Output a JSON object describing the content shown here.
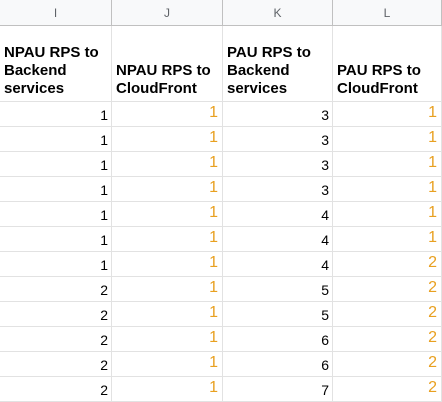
{
  "columns": [
    "I",
    "J",
    "K",
    "L"
  ],
  "headers": [
    "NPAU RPS to Backend services",
    "NPAU RPS to CloudFront",
    "PAU RPS to Backend services",
    "PAU RPS to CloudFront"
  ],
  "rows": [
    [
      "1",
      "1",
      "3",
      "1"
    ],
    [
      "1",
      "1",
      "3",
      "1"
    ],
    [
      "1",
      "1",
      "3",
      "1"
    ],
    [
      "1",
      "1",
      "3",
      "1"
    ],
    [
      "1",
      "1",
      "4",
      "1"
    ],
    [
      "1",
      "1",
      "4",
      "1"
    ],
    [
      "1",
      "1",
      "4",
      "2"
    ],
    [
      "2",
      "1",
      "5",
      "2"
    ],
    [
      "2",
      "1",
      "5",
      "2"
    ],
    [
      "2",
      "1",
      "6",
      "2"
    ],
    [
      "2",
      "1",
      "6",
      "2"
    ],
    [
      "2",
      "1",
      "7",
      "2"
    ]
  ],
  "colors": {
    "accent_orange": "#e8a020",
    "header_bg": "#f8f9fa"
  }
}
